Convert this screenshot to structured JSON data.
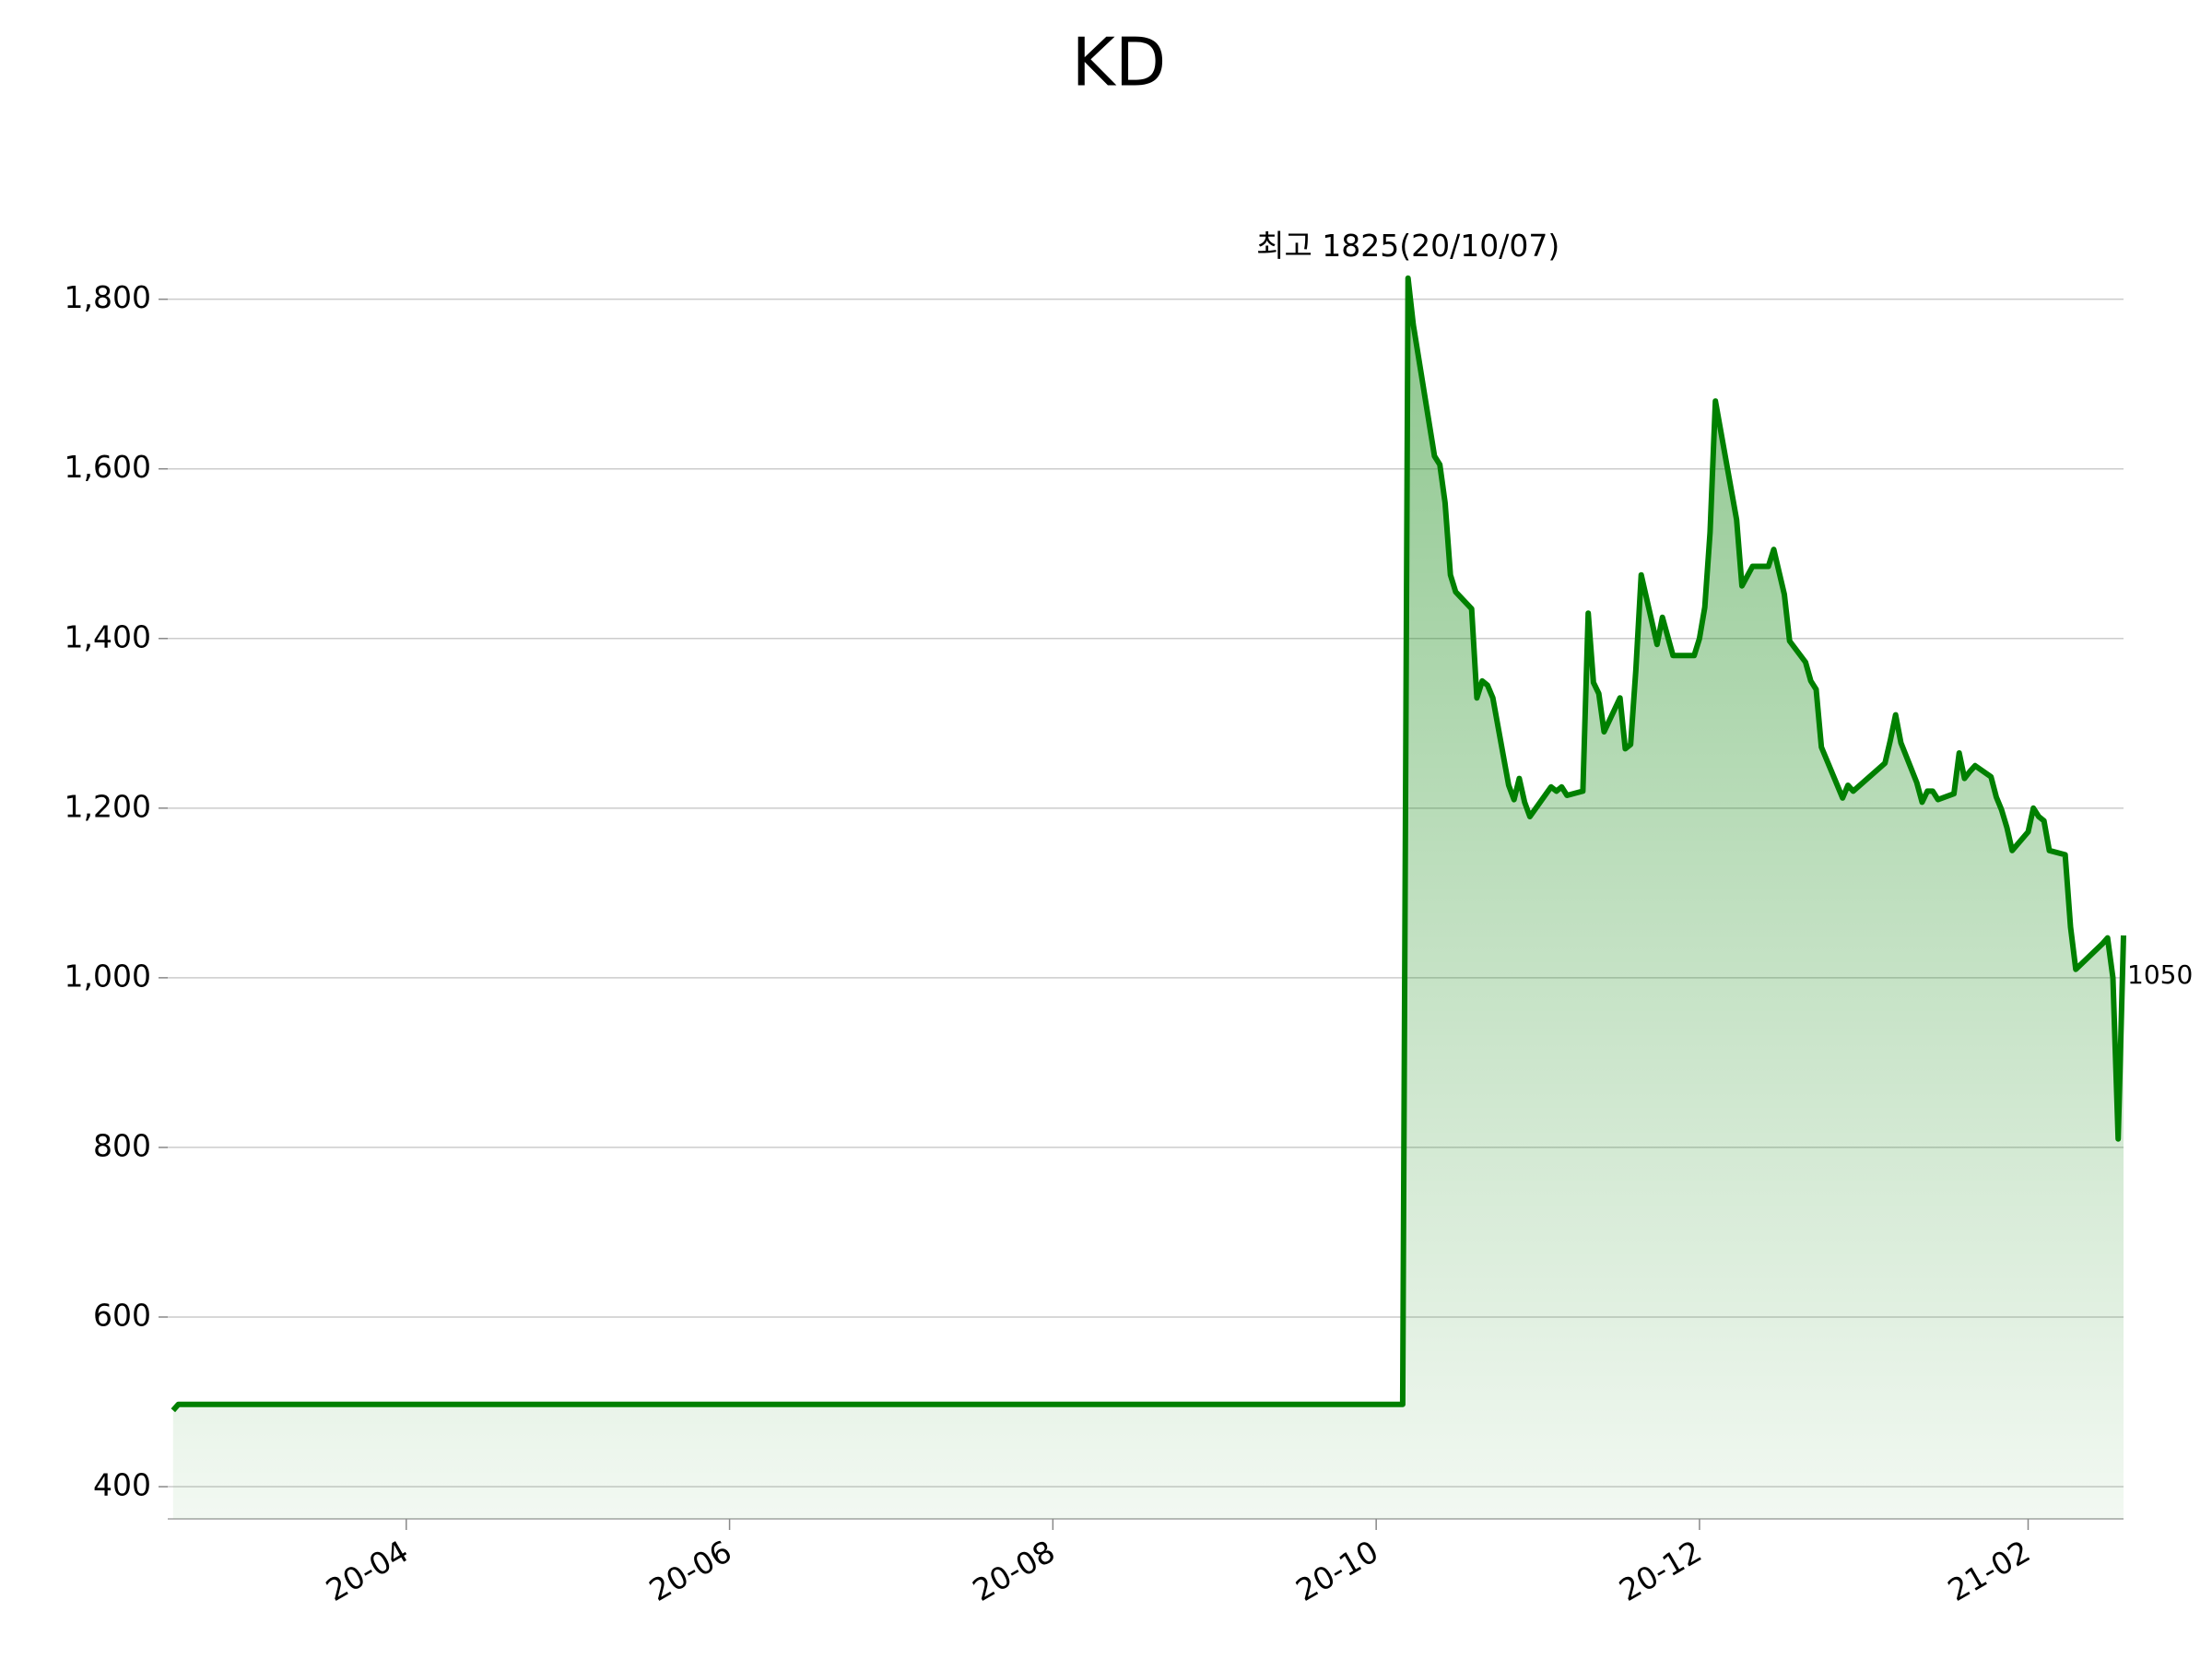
{
  "chart_data": {
    "type": "line",
    "title": "KD",
    "x": [
      "2020-02-17",
      "2020-02-18",
      "2020-10-06",
      "2020-10-07",
      "2020-10-08",
      "2020-10-12",
      "2020-10-13",
      "2020-10-14",
      "2020-10-15",
      "2020-10-16",
      "2020-10-19",
      "2020-10-20",
      "2020-10-21",
      "2020-10-22",
      "2020-10-23",
      "2020-10-26",
      "2020-10-27",
      "2020-10-28",
      "2020-10-29",
      "2020-10-30",
      "2020-11-03",
      "2020-11-04",
      "2020-11-05",
      "2020-11-06",
      "2020-11-09",
      "2020-11-10",
      "2020-11-11",
      "2020-11-12",
      "2020-11-13",
      "2020-11-16",
      "2020-11-17",
      "2020-11-18",
      "2020-11-19",
      "2020-11-20",
      "2020-11-23",
      "2020-11-24",
      "2020-11-26",
      "2020-11-30",
      "2020-12-01",
      "2020-12-02",
      "2020-12-03",
      "2020-12-04",
      "2020-12-08",
      "2020-12-09",
      "2020-12-11",
      "2020-12-14",
      "2020-12-15",
      "2020-12-17",
      "2020-12-18",
      "2020-12-21",
      "2020-12-22",
      "2020-12-23",
      "2020-12-24",
      "2020-12-28",
      "2020-12-29",
      "2020-12-30",
      "2021-01-05",
      "2021-01-06",
      "2021-01-07",
      "2021-01-08",
      "2021-01-11",
      "2021-01-12",
      "2021-01-13",
      "2021-01-14",
      "2021-01-15",
      "2021-01-18",
      "2021-01-19",
      "2021-01-20",
      "2021-01-21",
      "2021-01-22",
      "2021-01-25",
      "2021-01-26",
      "2021-01-27",
      "2021-01-28",
      "2021-01-29",
      "2021-02-01",
      "2021-02-02",
      "2021-02-03",
      "2021-02-04",
      "2021-02-05",
      "2021-02-08",
      "2021-02-09",
      "2021-02-10",
      "2021-02-15",
      "2021-02-16",
      "2021-02-17",
      "2021-02-18",
      "2021-02-19"
    ],
    "series": [
      {
        "color": "#008000",
        "values": [
          490,
          497,
          497,
          1825,
          1770,
          1615,
          1605,
          1560,
          1475,
          1455,
          1435,
          1330,
          1350,
          1345,
          1330,
          1227,
          1210,
          1235,
          1207,
          1190,
          1225,
          1220,
          1225,
          1215,
          1220,
          1430,
          1348,
          1335,
          1290,
          1330,
          1270,
          1275,
          1363,
          1475,
          1393,
          1425,
          1380,
          1380,
          1400,
          1437,
          1525,
          1680,
          1540,
          1462,
          1485,
          1485,
          1505,
          1452,
          1397,
          1372,
          1350,
          1340,
          1272,
          1212,
          1227,
          1220,
          1253,
          1280,
          1310,
          1277,
          1230,
          1207,
          1220,
          1220,
          1210,
          1217,
          1265,
          1235,
          1243,
          1250,
          1237,
          1213,
          1198,
          1177,
          1150,
          1172,
          1200,
          1190,
          1185,
          1150,
          1145,
          1060,
          1010,
          1040,
          1047,
          1000,
          810,
          1050
        ]
      }
    ],
    "annotations": [
      {
        "text": "최고 1825(20/10/07)",
        "color": "#ff0000"
      }
    ],
    "xlim": [
      "2020-02-16",
      "2021-02-19"
    ],
    "xticks": [
      {
        "value": "2020-04-01",
        "label": "20-04"
      },
      {
        "value": "2020-06-01",
        "label": "20-06"
      },
      {
        "value": "2020-08-01",
        "label": "20-08"
      },
      {
        "value": "2020-10-01",
        "label": "20-10"
      },
      {
        "value": "2020-12-01",
        "label": "20-12"
      },
      {
        "value": "2021-02-01",
        "label": "21-02"
      }
    ],
    "ylim": [
      362,
      1892
    ],
    "yticks": [
      {
        "value": 400,
        "label": "400"
      },
      {
        "value": 600,
        "label": "600"
      },
      {
        "value": 800,
        "label": "800"
      },
      {
        "value": 1000,
        "label": "1,000"
      },
      {
        "value": 1200,
        "label": "1,200"
      },
      {
        "value": 1400,
        "label": "1,400"
      },
      {
        "value": 1600,
        "label": "1,600"
      },
      {
        "value": 1800,
        "label": "1,800"
      }
    ],
    "grid": true
  }
}
